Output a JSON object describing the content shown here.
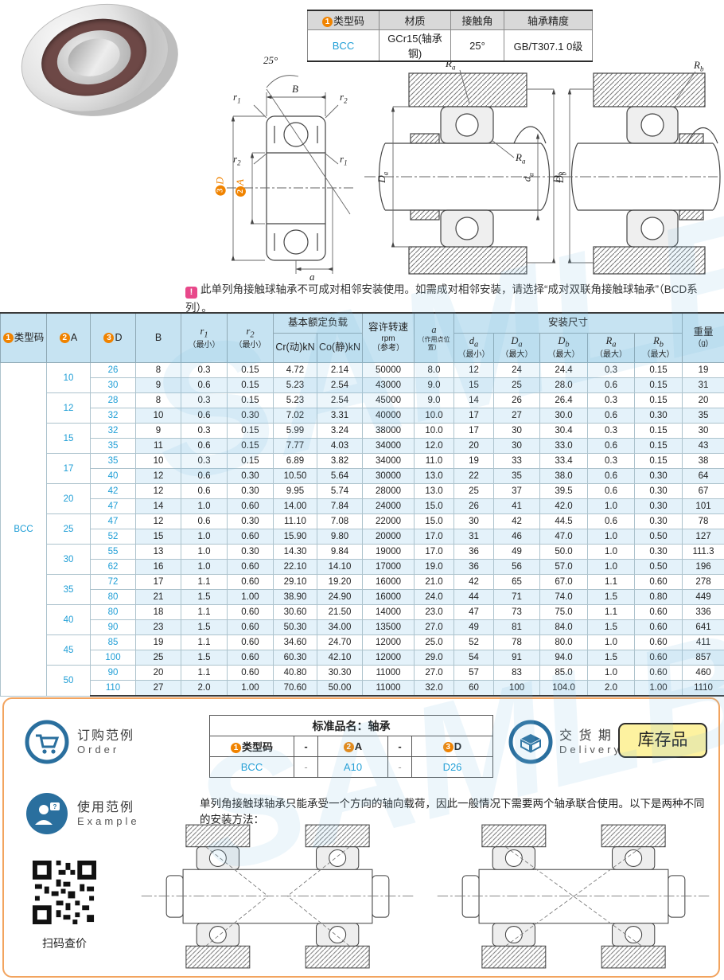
{
  "watermark": "SAMLB",
  "spec_table": {
    "badge": "1",
    "headers": [
      "类型码",
      "材质",
      "接触角",
      "轴承精度"
    ],
    "values": [
      "BCC",
      "GCr15(轴承钢)",
      "25°",
      "GB/T307.1 0级"
    ]
  },
  "drawings": {
    "angle": "25°",
    "b": "B",
    "r": "r",
    "sub1": "1",
    "sub2": "2",
    "d_badge": "3",
    "d": "D",
    "a_badge": "2",
    "a": "A",
    "a_point": "a",
    "R": "R",
    "D": "D",
    "d_low": "d",
    "sub_a": "a",
    "sub_b": "b"
  },
  "note": {
    "icon": "!",
    "text": "此单列角接触球轴承不可成对相邻安装使用。如需成对相邻安装，请选择“成对双联角接触球轴承”（BCD系列）。"
  },
  "main_table": {
    "type_code": "BCC",
    "header": {
      "type_code_badge": "1",
      "type_code": "类型码",
      "a_badge": "2",
      "a_label": "A",
      "d_badge": "3",
      "d_label": "D",
      "b_label": "B",
      "r_base": "r",
      "r1_sub": "1",
      "r2_sub": "2",
      "min_note": "（最小）",
      "max_note": "（最大）",
      "load_group": "基本额定负载",
      "cr": "Cr(动)kN",
      "co": "Co(静)kN",
      "speed_l1": "容许转速",
      "speed_l2": "rpm",
      "speed_l3": "（参考）",
      "a_pos": "a",
      "a_pos_note": "（作用点位置）",
      "mount_group": "安装尺寸",
      "da": {
        "b": "d",
        "s": "a"
      },
      "Da": {
        "b": "D",
        "s": "a"
      },
      "Db": {
        "b": "D",
        "s": "b"
      },
      "Ra": {
        "b": "R",
        "s": "a"
      },
      "Rb": {
        "b": "R",
        "s": "b"
      },
      "weight_l1": "重量",
      "weight_l2": "(g)"
    },
    "groups": [
      {
        "a": "10",
        "rows": [
          {
            "d": "26",
            "c": [
              "8",
              "0.3",
              "0.15",
              "4.72",
              "2.14",
              "50000",
              "8.0",
              "12",
              "24",
              "24.4",
              "0.3",
              "0.15",
              "19"
            ]
          },
          {
            "d": "30",
            "c": [
              "9",
              "0.6",
              "0.15",
              "5.23",
              "2.54",
              "43000",
              "9.0",
              "15",
              "25",
              "28.0",
              "0.6",
              "0.15",
              "31"
            ]
          }
        ]
      },
      {
        "a": "12",
        "rows": [
          {
            "d": "28",
            "c": [
              "8",
              "0.3",
              "0.15",
              "5.23",
              "2.54",
              "45000",
              "9.0",
              "14",
              "26",
              "26.4",
              "0.3",
              "0.15",
              "20"
            ]
          },
          {
            "d": "32",
            "c": [
              "10",
              "0.6",
              "0.30",
              "7.02",
              "3.31",
              "40000",
              "10.0",
              "17",
              "27",
              "30.0",
              "0.6",
              "0.30",
              "35"
            ]
          }
        ]
      },
      {
        "a": "15",
        "rows": [
          {
            "d": "32",
            "c": [
              "9",
              "0.3",
              "0.15",
              "5.99",
              "3.24",
              "38000",
              "10.0",
              "17",
              "30",
              "30.4",
              "0.3",
              "0.15",
              "30"
            ]
          },
          {
            "d": "35",
            "c": [
              "11",
              "0.6",
              "0.15",
              "7.77",
              "4.03",
              "34000",
              "12.0",
              "20",
              "30",
              "33.0",
              "0.6",
              "0.15",
              "43"
            ]
          }
        ]
      },
      {
        "a": "17",
        "rows": [
          {
            "d": "35",
            "c": [
              "10",
              "0.3",
              "0.15",
              "6.89",
              "3.82",
              "34000",
              "11.0",
              "19",
              "33",
              "33.4",
              "0.3",
              "0.15",
              "38"
            ]
          },
          {
            "d": "40",
            "c": [
              "12",
              "0.6",
              "0.30",
              "10.50",
              "5.64",
              "30000",
              "13.0",
              "22",
              "35",
              "38.0",
              "0.6",
              "0.30",
              "64"
            ]
          }
        ]
      },
      {
        "a": "20",
        "rows": [
          {
            "d": "42",
            "c": [
              "12",
              "0.6",
              "0.30",
              "9.95",
              "5.74",
              "28000",
              "13.0",
              "25",
              "37",
              "39.5",
              "0.6",
              "0.30",
              "67"
            ]
          },
          {
            "d": "47",
            "c": [
              "14",
              "1.0",
              "0.60",
              "14.00",
              "7.84",
              "24000",
              "15.0",
              "26",
              "41",
              "42.0",
              "1.0",
              "0.30",
              "101"
            ]
          }
        ]
      },
      {
        "a": "25",
        "rows": [
          {
            "d": "47",
            "c": [
              "12",
              "0.6",
              "0.30",
              "11.10",
              "7.08",
              "22000",
              "15.0",
              "30",
              "42",
              "44.5",
              "0.6",
              "0.30",
              "78"
            ]
          },
          {
            "d": "52",
            "c": [
              "15",
              "1.0",
              "0.60",
              "15.90",
              "9.80",
              "20000",
              "17.0",
              "31",
              "46",
              "47.0",
              "1.0",
              "0.50",
              "127"
            ]
          }
        ]
      },
      {
        "a": "30",
        "rows": [
          {
            "d": "55",
            "c": [
              "13",
              "1.0",
              "0.30",
              "14.30",
              "9.84",
              "19000",
              "17.0",
              "36",
              "49",
              "50.0",
              "1.0",
              "0.30",
              "111.3"
            ]
          },
          {
            "d": "62",
            "c": [
              "16",
              "1.0",
              "0.60",
              "22.10",
              "14.10",
              "17000",
              "19.0",
              "36",
              "56",
              "57.0",
              "1.0",
              "0.50",
              "196"
            ]
          }
        ]
      },
      {
        "a": "35",
        "rows": [
          {
            "d": "72",
            "c": [
              "17",
              "1.1",
              "0.60",
              "29.10",
              "19.20",
              "16000",
              "21.0",
              "42",
              "65",
              "67.0",
              "1.1",
              "0.60",
              "278"
            ]
          },
          {
            "d": "80",
            "c": [
              "21",
              "1.5",
              "1.00",
              "38.90",
              "24.90",
              "16000",
              "24.0",
              "44",
              "71",
              "74.0",
              "1.5",
              "0.80",
              "449"
            ]
          }
        ]
      },
      {
        "a": "40",
        "rows": [
          {
            "d": "80",
            "c": [
              "18",
              "1.1",
              "0.60",
              "30.60",
              "21.50",
              "14000",
              "23.0",
              "47",
              "73",
              "75.0",
              "1.1",
              "0.60",
              "336"
            ]
          },
          {
            "d": "90",
            "c": [
              "23",
              "1.5",
              "0.60",
              "50.30",
              "34.00",
              "13500",
              "27.0",
              "49",
              "81",
              "84.0",
              "1.5",
              "0.60",
              "641"
            ]
          }
        ]
      },
      {
        "a": "45",
        "rows": [
          {
            "d": "85",
            "c": [
              "19",
              "1.1",
              "0.60",
              "34.60",
              "24.70",
              "12000",
              "25.0",
              "52",
              "78",
              "80.0",
              "1.0",
              "0.60",
              "411"
            ]
          },
          {
            "d": "100",
            "c": [
              "25",
              "1.5",
              "0.60",
              "60.30",
              "42.10",
              "12000",
              "29.0",
              "54",
              "91",
              "94.0",
              "1.5",
              "0.60",
              "857"
            ]
          }
        ]
      },
      {
        "a": "50",
        "rows": [
          {
            "d": "90",
            "c": [
              "20",
              "1.1",
              "0.60",
              "40.80",
              "30.30",
              "11000",
              "27.0",
              "57",
              "83",
              "85.0",
              "1.0",
              "0.60",
              "460"
            ]
          },
          {
            "d": "110",
            "c": [
              "27",
              "2.0",
              "1.00",
              "70.60",
              "50.00",
              "11000",
              "32.0",
              "60",
              "100",
              "104.0",
              "2.0",
              "1.00",
              "1110"
            ]
          }
        ]
      }
    ]
  },
  "order": {
    "title_cn": "订购范例",
    "title_en": "Order",
    "table_title": "标准品名：轴承",
    "h1_badge": "1",
    "h1": "类型码",
    "dash": "-",
    "h2_badge": "2",
    "h2": "A",
    "h3_badge": "3",
    "h3": "D",
    "v1": "BCC",
    "v2": "A10",
    "v3": "D26"
  },
  "delivery": {
    "title_cn": "交 货 期",
    "title_en": "Delivery",
    "badge": "库存品"
  },
  "example": {
    "title_cn": "使用范例",
    "title_en": "Example",
    "text": "单列角接触球轴承只能承受一个方向的轴向载荷，因此一般情况下需要两个轴承联合使用。以下是两种不同的安装方法："
  },
  "qr": {
    "caption": "扫码查价"
  }
}
